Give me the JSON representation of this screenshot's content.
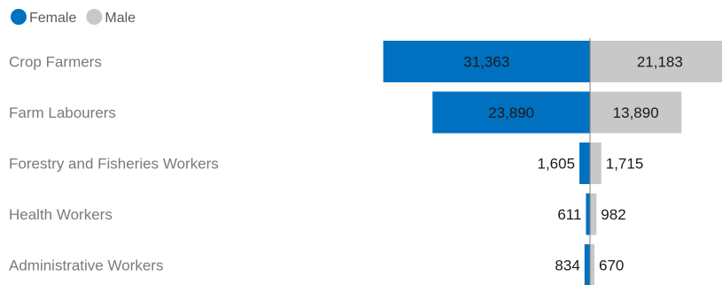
{
  "chart_data": {
    "type": "bar",
    "orientation": "horizontal",
    "layout": "butterfly",
    "categories": [
      "Crop Farmers",
      "Farm Labourers",
      "Forestry and Fisheries Workers",
      "Health Workers",
      "Administrative Workers"
    ],
    "series": [
      {
        "name": "Female",
        "color": "#0070C0",
        "values": [
          31363,
          23890,
          1605,
          611,
          834
        ],
        "value_labels": [
          "31,363",
          "23,890",
          "1,605",
          "611",
          "834"
        ]
      },
      {
        "name": "Male",
        "color": "#C8C8C8",
        "values": [
          21183,
          13890,
          1715,
          982,
          670
        ],
        "value_labels": [
          "21,183",
          "13,890",
          "1,715",
          "982",
          "670"
        ]
      }
    ],
    "title": "",
    "xlabel": "",
    "ylabel": "",
    "xlim": [
      0,
      34000
    ],
    "grid": false,
    "legend": "top-left"
  }
}
